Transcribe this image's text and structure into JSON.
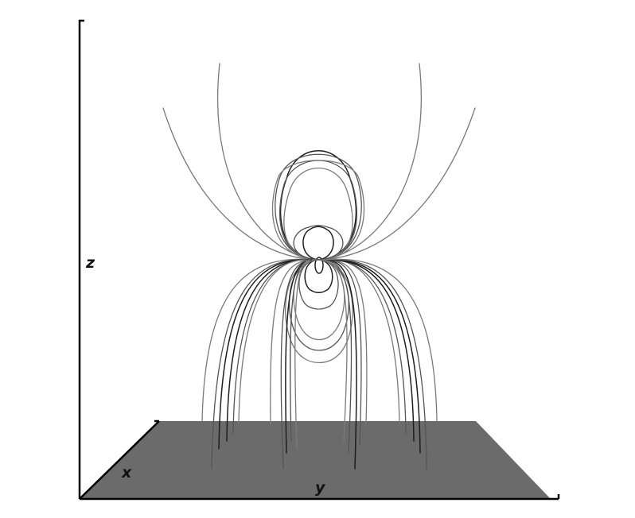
{
  "labels": {
    "z_axis": "z",
    "x_axis": "x",
    "y_axis": "y"
  },
  "colors": {
    "background": "#ffffff",
    "axis": "#000000",
    "plane": "#6b6b6b",
    "line_dark": "#1e1e1e",
    "line_mid": "#555555",
    "line_light": "#7a7a7a"
  }
}
